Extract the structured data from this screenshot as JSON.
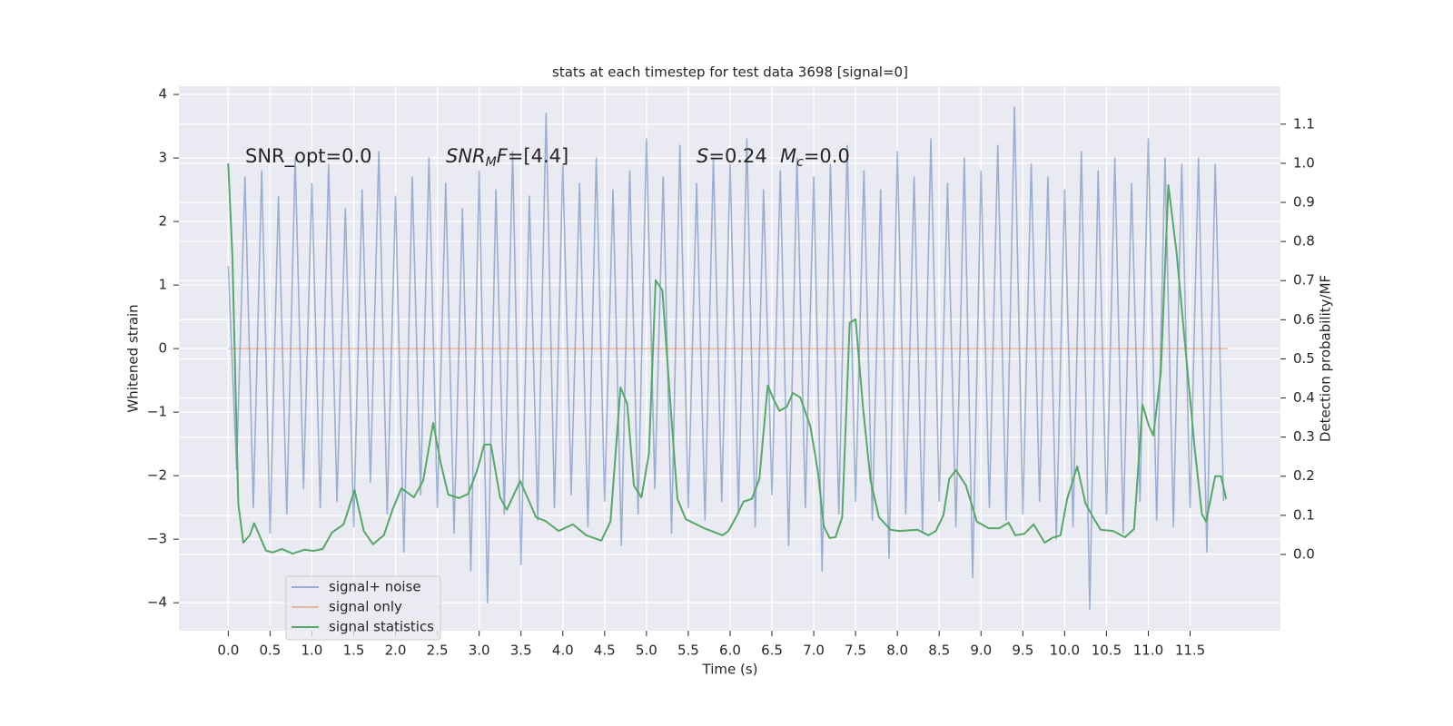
{
  "chart_data": {
    "type": "line",
    "title": "stats at each timestep for test data 3698 [signal=0]",
    "xlabel": "Time (s)",
    "ylabel": "Whitened strain",
    "y2label": "Detection probability/MF",
    "xlim": [
      -0.59,
      12.58
    ],
    "ylim": [
      -4.44,
      4.13
    ],
    "y2lim": [
      -0.195,
      1.197
    ],
    "xticks": [
      {
        "value": 0,
        "label": "0.0"
      },
      0.5,
      {
        "value": 1,
        "label": "1.0"
      },
      1.5,
      {
        "value": 2,
        "label": "2.0"
      },
      2.5,
      {
        "value": 3,
        "label": "3.0"
      },
      3.5,
      {
        "value": 4,
        "label": "4.0"
      },
      4.5,
      {
        "value": 5,
        "label": "5.0"
      },
      5.5,
      {
        "value": 6,
        "label": "6.0"
      },
      6.5,
      {
        "value": 7,
        "label": "7.0"
      },
      7.5,
      {
        "value": 8,
        "label": "8.0"
      },
      8.5,
      {
        "value": 9,
        "label": "9.0"
      },
      9.5,
      {
        "value": 10,
        "label": "10.0"
      },
      10.5,
      {
        "value": 11,
        "label": "11.0"
      },
      11.5
    ],
    "yticks": [
      {
        "value": -4,
        "label": "−4"
      },
      {
        "value": -3,
        "label": "−3"
      },
      {
        "value": -2,
        "label": "−2"
      },
      {
        "value": -1,
        "label": "−1"
      },
      0,
      1,
      2,
      3,
      4
    ],
    "y2ticks": [
      {
        "value": 0,
        "label": "0.0"
      },
      0.1,
      0.2,
      0.3,
      0.4,
      0.5,
      0.6,
      0.7,
      0.8,
      0.9,
      {
        "value": 1,
        "label": "1.0"
      },
      1.1
    ],
    "grid": true,
    "legend": "lower left",
    "annotations": [
      [
        {
          "text": "SNR_opt=0.0",
          "style": "normal"
        }
      ],
      [
        {
          "text": "SNR",
          "style": "italic"
        },
        {
          "text": "M",
          "style": "sub"
        },
        {
          "text": "F",
          "style": "italic"
        },
        {
          "text": "=[4.4]",
          "style": "normal"
        }
      ],
      [
        {
          "text": "S",
          "style": "italic"
        },
        {
          "text": "=0.24",
          "style": "normal"
        }
      ],
      [
        {
          "text": "M",
          "style": "italic"
        },
        {
          "text": "c",
          "style": "sub"
        },
        {
          "text": "=0.0",
          "style": "normal"
        }
      ]
    ],
    "series": [
      {
        "name": "signal+ noise",
        "color": "#4c72b0",
        "opacity": 0.5,
        "x": [
          0,
          0.1,
          0.2,
          0.3,
          0.4,
          0.5,
          0.6,
          0.7,
          0.8,
          0.9,
          1,
          1.1,
          1.2,
          1.3,
          1.4,
          1.5,
          1.6,
          1.7,
          1.8,
          1.9,
          2,
          2.1,
          2.2,
          2.3,
          2.4,
          2.5,
          2.6,
          2.7,
          2.8,
          2.9,
          3,
          3.1,
          3.2,
          3.3,
          3.4,
          3.5,
          3.6,
          3.7,
          3.8,
          3.9,
          4,
          4.1,
          4.2,
          4.3,
          4.4,
          4.5,
          4.6,
          4.7,
          4.8,
          4.9,
          5,
          5.1,
          5.2,
          5.3,
          5.4,
          5.5,
          5.6,
          5.7,
          5.8,
          5.9,
          6,
          6.1,
          6.2,
          6.3,
          6.4,
          6.5,
          6.6,
          6.7,
          6.8,
          6.9,
          7,
          7.1,
          7.2,
          7.3,
          7.4,
          7.5,
          7.6,
          7.7,
          7.8,
          7.9,
          8,
          8.1,
          8.2,
          8.3,
          8.4,
          8.5,
          8.6,
          8.7,
          8.8,
          8.9,
          9,
          9.1,
          9.2,
          9.3,
          9.4,
          9.5,
          9.6,
          9.7,
          9.8,
          9.9,
          10,
          10.1,
          10.2,
          10.3,
          10.4,
          10.5,
          10.6,
          10.7,
          10.8,
          10.9,
          11,
          11.1,
          11.2,
          11.3,
          11.4,
          11.5,
          11.6,
          11.7,
          11.8,
          11.9
        ],
        "values": [
          1.3,
          -1.9,
          2.7,
          -2.5,
          2.8,
          -2.9,
          2.4,
          -2.6,
          3.0,
          -2.2,
          2.6,
          -2.5,
          2.9,
          -2.4,
          2.2,
          -2.8,
          2.5,
          -2.1,
          3.1,
          -2.6,
          2.4,
          -3.2,
          2.7,
          -2.3,
          3.0,
          -2.5,
          2.6,
          -2.9,
          2.2,
          -3.5,
          2.8,
          -4.0,
          2.5,
          -2.6,
          3.1,
          -3.4,
          2.4,
          -2.7,
          3.7,
          -2.5,
          2.9,
          -2.3,
          2.6,
          -2.8,
          3.0,
          -2.4,
          2.5,
          -3.1,
          2.8,
          -2.6,
          3.3,
          -2.2,
          2.7,
          -2.9,
          3.2,
          -2.5,
          2.6,
          -2.7,
          3.0,
          -2.4,
          2.9,
          -2.6,
          3.3,
          -2.8,
          2.5,
          -2.3,
          2.8,
          -3.1,
          3.0,
          -2.5,
          2.7,
          -3.5,
          2.9,
          -2.6,
          3.2,
          -2.4,
          2.8,
          -2.7,
          2.5,
          -3.3,
          3.1,
          -2.6,
          2.7,
          -2.9,
          3.3,
          -2.4,
          2.6,
          -2.8,
          3.0,
          -3.6,
          2.8,
          -2.5,
          3.2,
          -2.7,
          3.8,
          -2.6,
          2.9,
          -2.4,
          2.7,
          -3.0,
          2.5,
          -2.8,
          3.1,
          -4.1,
          2.8,
          -2.6,
          3.0,
          -2.9,
          2.6,
          -2.4,
          3.3,
          -2.7,
          3.0,
          -2.8,
          2.9,
          -2.5,
          3.0,
          -3.2,
          2.9,
          -2.4
        ]
      },
      {
        "name": "signal only",
        "color": "#dd8452",
        "opacity": 0.5,
        "x": [
          0,
          11.95
        ],
        "values": [
          0,
          0
        ]
      },
      {
        "name": "signal statistics",
        "color": "#55a868",
        "opacity": 1,
        "axis": "y2",
        "x": [
          0,
          0.05,
          0.12,
          0.18,
          0.26,
          0.31,
          0.45,
          0.53,
          0.64,
          0.77,
          0.91,
          1.02,
          1.13,
          1.24,
          1.38,
          1.51,
          1.62,
          1.73,
          1.86,
          1.97,
          2.07,
          2.22,
          2.33,
          2.45,
          2.54,
          2.63,
          2.76,
          2.87,
          2.98,
          3.06,
          3.14,
          3.25,
          3.33,
          3.49,
          3.68,
          3.79,
          3.95,
          4.12,
          4.28,
          4.46,
          4.57,
          4.69,
          4.77,
          4.85,
          4.94,
          5.03,
          5.11,
          5.19,
          5.29,
          5.37,
          5.47,
          5.69,
          5.91,
          5.98,
          6.07,
          6.16,
          6.26,
          6.35,
          6.45,
          6.52,
          6.59,
          6.68,
          6.75,
          6.84,
          6.96,
          7.05,
          7.12,
          7.19,
          7.26,
          7.34,
          7.43,
          7.5,
          7.59,
          7.68,
          7.78,
          7.92,
          8.02,
          8.24,
          8.37,
          8.46,
          8.55,
          8.62,
          8.7,
          8.82,
          8.95,
          9.09,
          9.22,
          9.33,
          9.41,
          9.52,
          9.63,
          9.76,
          9.85,
          9.95,
          10.03,
          10.15,
          10.25,
          10.34,
          10.43,
          10.58,
          10.72,
          10.83,
          10.93,
          11.01,
          11.06,
          11.15,
          11.24,
          11.34,
          11.44,
          11.55,
          11.64,
          11.69,
          11.8,
          11.87,
          11.93
        ],
        "values": [
          1.0,
          0.76,
          0.13,
          0.03,
          0.05,
          0.08,
          0.01,
          0.005,
          0.014,
          0.002,
          0.012,
          0.009,
          0.014,
          0.056,
          0.077,
          0.165,
          0.06,
          0.026,
          0.049,
          0.118,
          0.169,
          0.146,
          0.188,
          0.336,
          0.234,
          0.153,
          0.144,
          0.155,
          0.218,
          0.281,
          0.281,
          0.146,
          0.114,
          0.188,
          0.095,
          0.086,
          0.06,
          0.077,
          0.049,
          0.035,
          0.084,
          0.427,
          0.385,
          0.176,
          0.146,
          0.258,
          0.701,
          0.675,
          0.374,
          0.142,
          0.09,
          0.067,
          0.049,
          0.06,
          0.095,
          0.135,
          0.142,
          0.193,
          0.432,
          0.397,
          0.367,
          0.378,
          0.413,
          0.401,
          0.327,
          0.211,
          0.072,
          0.042,
          0.044,
          0.095,
          0.592,
          0.601,
          0.374,
          0.188,
          0.095,
          0.063,
          0.06,
          0.063,
          0.049,
          0.06,
          0.1,
          0.193,
          0.216,
          0.176,
          0.084,
          0.067,
          0.067,
          0.081,
          0.049,
          0.053,
          0.077,
          0.03,
          0.042,
          0.049,
          0.142,
          0.225,
          0.13,
          0.095,
          0.063,
          0.06,
          0.044,
          0.065,
          0.383,
          0.327,
          0.304,
          0.466,
          0.944,
          0.768,
          0.536,
          0.281,
          0.104,
          0.084,
          0.2,
          0.2,
          0.142
        ]
      }
    ]
  }
}
